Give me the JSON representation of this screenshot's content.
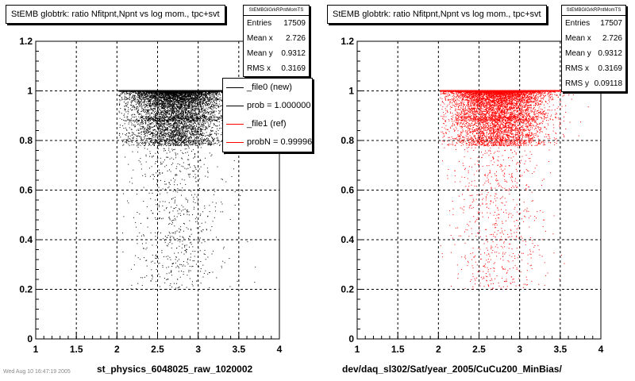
{
  "panels": [
    {
      "title": "StEMB globtrk: ratio Nfitpnt,Npnt vs log mom., tpc+svt",
      "stats": {
        "name": "StEMBGlGrkRPntMomTS",
        "rows": [
          {
            "label": "Entries",
            "value": "17509"
          },
          {
            "label": "Mean x",
            "value": "2.726"
          },
          {
            "label": "Mean y",
            "value": "0.9312"
          },
          {
            "label": "RMS x",
            "value": "0.3169"
          }
        ]
      },
      "legend": [
        {
          "label": "_file0 (new)",
          "color": "#000000"
        },
        {
          "label": "prob = 1.000000",
          "color": "#000000"
        },
        {
          "label": "_file1 (ref)",
          "color": "#ff0000"
        },
        {
          "label": "probN = 0.99996",
          "color": "#ff0000"
        }
      ],
      "xtitle": "st_physics_6048025_raw_1020002"
    },
    {
      "title": "StEMB globtrk: ratio Nfitpnt,Npnt vs log mom., tpc+svt",
      "stats": {
        "name": "StEMBGlGrkRPntMomTS",
        "rows": [
          {
            "label": "Entries",
            "value": "17507"
          },
          {
            "label": "Mean x",
            "value": "2.726"
          },
          {
            "label": "Mean y",
            "value": "0.9312"
          },
          {
            "label": "RMS x",
            "value": "0.3169"
          },
          {
            "label": "RMS y",
            "value": "0.09118"
          }
        ]
      },
      "xtitle": "dev/daq_sl302/Sat/year_2005/CuCu200_MinBias/"
    }
  ],
  "footer": "Wed Aug 10 16:47:19 2005",
  "chart_data": [
    {
      "type": "scatter",
      "title": "StEMB globtrk: ratio Nfitpnt,Npnt vs log mom., tpc+svt",
      "xlabel": "st_physics_6048025_raw_1020002",
      "ylabel": "",
      "xlim": [
        1,
        4
      ],
      "ylim": [
        0,
        1.2
      ],
      "xticks": [
        "1",
        "1.5",
        "2",
        "2.5",
        "3",
        "3.5",
        "4"
      ],
      "yticks": [
        "0",
        "0.2",
        "0.4",
        "0.6",
        "0.8",
        "1",
        "1.2"
      ],
      "grid": true,
      "color": "#000000",
      "series": [
        {
          "name": "_file0 (new)"
        }
      ],
      "distribution": {
        "x_mean": 2.726,
        "y_mean": 0.9312,
        "x_rms": 0.3169,
        "y_max": 1.0,
        "entries": 17509
      }
    },
    {
      "type": "scatter",
      "title": "StEMB globtrk: ratio Nfitpnt,Npnt vs log mom., tpc+svt",
      "xlabel": "dev/daq_sl302/Sat/year_2005/CuCu200_MinBias/",
      "ylabel": "",
      "xlim": [
        1,
        4
      ],
      "ylim": [
        0,
        1.2
      ],
      "xticks": [
        "1",
        "1.5",
        "2",
        "2.5",
        "3",
        "3.5",
        "4"
      ],
      "yticks": [
        "0",
        "0.2",
        "0.4",
        "0.6",
        "0.8",
        "1",
        "1.2"
      ],
      "grid": true,
      "color": "#ff0000",
      "series": [
        {
          "name": "_file1 (ref)"
        }
      ],
      "distribution": {
        "x_mean": 2.726,
        "y_mean": 0.9312,
        "x_rms": 0.3169,
        "y_rms": 0.09118,
        "y_max": 1.0,
        "entries": 17507
      }
    }
  ]
}
